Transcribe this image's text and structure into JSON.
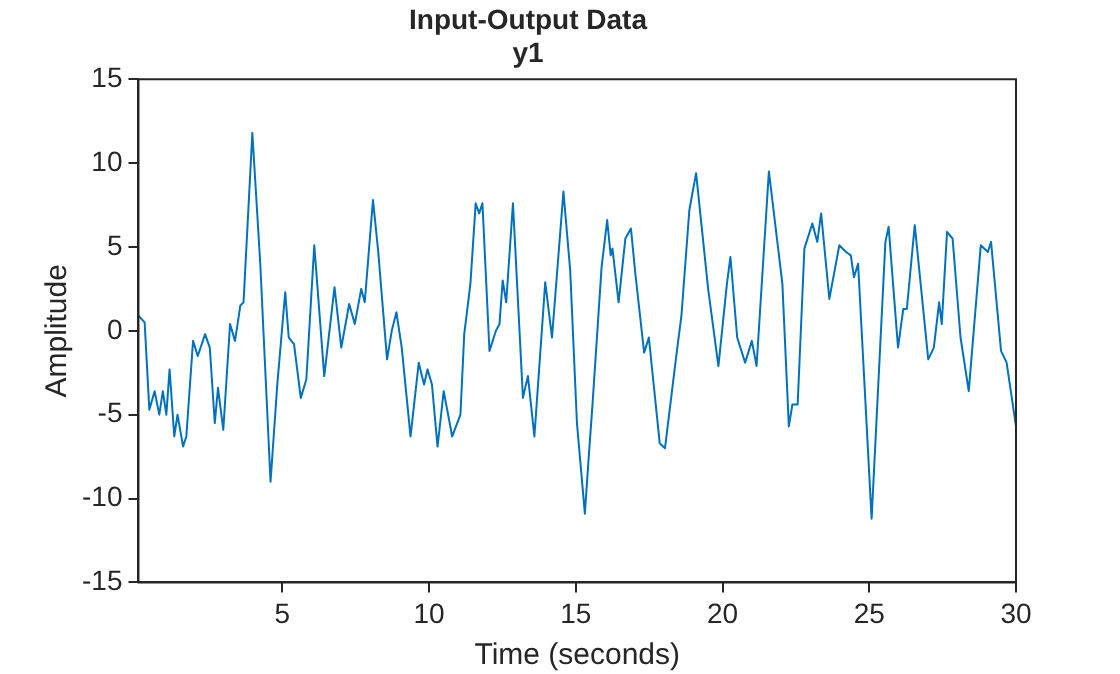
{
  "chart_data": {
    "type": "line",
    "title": "Input-Output Data",
    "subtitle": "y1",
    "xlabel": "Time (seconds)",
    "ylabel": "Amplitude",
    "xlim": [
      0.1,
      30
    ],
    "xticks": [
      5,
      10,
      15,
      20,
      25,
      30
    ],
    "ylim": [
      -15,
      15
    ],
    "yticks": [
      -15,
      -10,
      -5,
      0,
      5,
      10,
      15
    ],
    "grid": false,
    "marker": "none",
    "line_style": "solid",
    "series": [
      {
        "color": "#0072bd",
        "x": [
          0.1,
          0.31,
          0.47,
          0.65,
          0.81,
          0.93,
          1.05,
          1.16,
          1.32,
          1.43,
          1.62,
          1.73,
          1.96,
          2.12,
          2.37,
          2.53,
          2.7,
          2.81,
          2.99,
          3.22,
          3.39,
          3.57,
          3.68,
          3.98,
          4.25,
          4.6,
          4.83,
          5.1,
          5.22,
          5.4,
          5.63,
          5.82,
          6.09,
          6.43,
          6.78,
          7.01,
          7.28,
          7.47,
          7.69,
          7.81,
          8.09,
          8.27,
          8.57,
          8.73,
          8.89,
          9.07,
          9.37,
          9.65,
          9.83,
          9.95,
          10.1,
          10.29,
          10.5,
          10.79,
          11.07,
          11.2,
          11.41,
          11.59,
          11.71,
          11.82,
          12.06,
          12.28,
          12.4,
          12.51,
          12.63,
          12.86,
          13.2,
          13.37,
          13.59,
          13.96,
          14.19,
          14.58,
          14.81,
          15.04,
          15.31,
          15.43,
          15.57,
          15.88,
          16.07,
          16.19,
          16.25,
          16.46,
          16.69,
          16.88,
          17.03,
          17.33,
          17.49,
          17.86,
          18.04,
          18.41,
          18.6,
          18.87,
          19.1,
          19.51,
          19.86,
          20.15,
          20.27,
          20.5,
          20.77,
          21.0,
          21.16,
          21.58,
          22.04,
          22.26,
          22.38,
          22.56,
          22.79,
          23.06,
          23.23,
          23.36,
          23.64,
          23.98,
          24.21,
          24.37,
          24.48,
          24.62,
          25.08,
          25.55,
          25.66,
          25.98,
          26.16,
          26.28,
          26.55,
          27.01,
          27.2,
          27.38,
          27.47,
          27.65,
          27.84,
          28.11,
          28.39,
          28.8,
          29.04,
          29.15,
          29.49,
          29.68,
          30.0
        ],
        "values": [
          0.9,
          0.5,
          -4.7,
          -3.6,
          -5.0,
          -3.6,
          -5.0,
          -2.3,
          -6.3,
          -5.0,
          -6.9,
          -6.3,
          -0.6,
          -1.5,
          -0.2,
          -1.0,
          -5.5,
          -3.4,
          -5.9,
          0.4,
          -0.6,
          1.5,
          1.7,
          11.8,
          4.0,
          -9.0,
          -3.2,
          2.3,
          -0.4,
          -0.8,
          -4.0,
          -2.9,
          5.1,
          -2.7,
          2.6,
          -1.0,
          1.6,
          0.4,
          2.5,
          1.7,
          7.8,
          4.7,
          -1.7,
          0.0,
          1.1,
          -1.0,
          -6.3,
          -1.9,
          -3.2,
          -2.3,
          -3.2,
          -6.9,
          -3.6,
          -6.3,
          -5.0,
          -0.2,
          2.8,
          7.6,
          7.0,
          7.6,
          -1.2,
          0.0,
          0.4,
          3.0,
          1.7,
          7.6,
          -4.0,
          -2.7,
          -6.3,
          2.9,
          -0.4,
          8.3,
          3.6,
          -5.5,
          -10.9,
          -7.8,
          -4.4,
          3.8,
          6.6,
          4.5,
          4.9,
          1.7,
          5.5,
          6.1,
          3.4,
          -1.3,
          -0.4,
          -6.7,
          -7.0,
          -1.7,
          0.9,
          7.2,
          9.4,
          2.5,
          -2.1,
          2.8,
          4.4,
          -0.4,
          -1.9,
          -0.6,
          -2.1,
          9.5,
          2.8,
          -5.7,
          -4.4,
          -4.4,
          4.9,
          6.4,
          5.3,
          7.0,
          1.9,
          5.1,
          4.7,
          4.5,
          3.2,
          4.0,
          -11.2,
          5.3,
          6.2,
          -1.0,
          1.3,
          1.3,
          6.3,
          -1.7,
          -1.0,
          1.7,
          0.4,
          5.9,
          5.5,
          -0.4,
          -3.6,
          5.1,
          4.7,
          5.3,
          -1.2,
          -1.9,
          -5.7
        ]
      }
    ]
  }
}
